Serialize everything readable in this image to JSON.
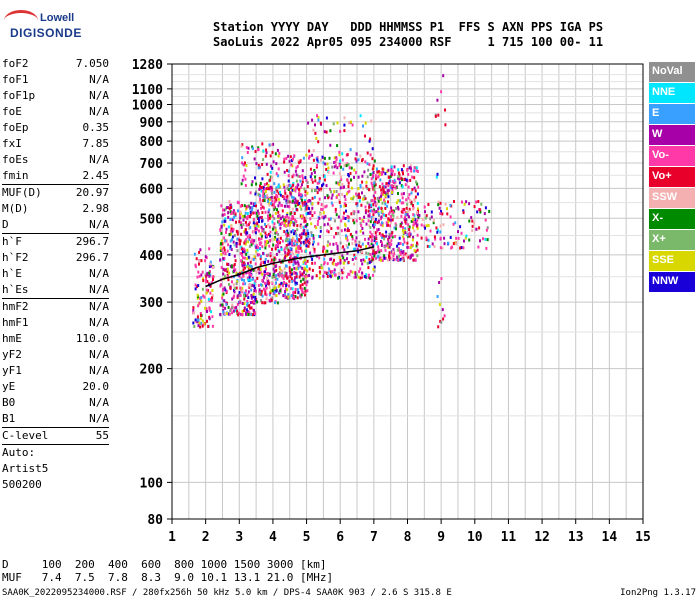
{
  "logo": {
    "line1": "Lowell",
    "line2": "DIGISONDE"
  },
  "header": {
    "labels": "Station YYYY DAY   DDD HHMMSS P1  FFS S AXN PPS IGA PS",
    "values": "SaoLuis 2022 Apr05 095 234000 RSF     1 715 100 00- 11"
  },
  "params": [
    {
      "name": "foF2",
      "value": "7.050"
    },
    {
      "name": "foF1",
      "value": "N/A"
    },
    {
      "name": "foF1p",
      "value": "N/A"
    },
    {
      "name": "foE",
      "value": "N/A"
    },
    {
      "name": "foEp",
      "value": "0.35"
    },
    {
      "name": "fxI",
      "value": "7.85"
    },
    {
      "name": "foEs",
      "value": "N/A"
    },
    {
      "name": "fmin",
      "value": "2.45",
      "sep": true
    },
    {
      "name": "MUF(D)",
      "value": "20.97"
    },
    {
      "name": "M(D)",
      "value": "2.98"
    },
    {
      "name": "D",
      "value": "N/A",
      "sep": true
    },
    {
      "name": "h`F",
      "value": "296.7"
    },
    {
      "name": "h`F2",
      "value": "296.7"
    },
    {
      "name": "h`E",
      "value": "N/A"
    },
    {
      "name": "h`Es",
      "value": "N/A",
      "sep": true
    },
    {
      "name": "hmF2",
      "value": "N/A"
    },
    {
      "name": "hmF1",
      "value": "N/A"
    },
    {
      "name": "hmE",
      "value": "110.0"
    },
    {
      "name": "yF2",
      "value": "N/A"
    },
    {
      "name": "yF1",
      "value": "N/A"
    },
    {
      "name": "yE",
      "value": "20.0"
    },
    {
      "name": "B0",
      "value": "N/A"
    },
    {
      "name": "B1",
      "value": "N/A",
      "sep": true
    },
    {
      "name": "C-level",
      "value": "55",
      "sep": true
    },
    {
      "name": "Auto:",
      "value": ""
    },
    {
      "name": "Artist5",
      "value": ""
    },
    {
      "name": "500200",
      "value": ""
    }
  ],
  "legend": [
    {
      "label": "NoVal",
      "color": "#909090"
    },
    {
      "label": "NNE",
      "color": "#00e6ff"
    },
    {
      "label": "E",
      "color": "#3aa0ff"
    },
    {
      "label": "W",
      "color": "#a800a8"
    },
    {
      "label": "Vo-",
      "color": "#ff3aa8"
    },
    {
      "label": "Vo+",
      "color": "#e8002a"
    },
    {
      "label": "SSW",
      "color": "#f4b0b0"
    },
    {
      "label": "X-",
      "color": "#008a00"
    },
    {
      "label": "X+",
      "color": "#7ab86a"
    },
    {
      "label": "SSE",
      "color": "#d8d800"
    },
    {
      "label": "NNW",
      "color": "#1a00d8"
    }
  ],
  "bottom": {
    "line1": "D     100  200  400  600  800 1000 1500 3000 [km]",
    "line2": "MUF   7.4  7.5  7.8  8.3  9.0 10.1 13.1 21.0 [MHz]"
  },
  "footer": {
    "left": "SAA0K_2022095234000.RSF / 280fx256h 50 kHz 5.0 km / DPS-4 SAA0K 903 / 2.6 S 315.8 E",
    "right": "Ion2Png 1.3.17"
  },
  "chart_data": {
    "type": "scatter",
    "title": "",
    "xlabel": "",
    "ylabel": "",
    "xlim": [
      1,
      15
    ],
    "ylim": [
      80,
      1280
    ],
    "y_scale": "log",
    "x_ticks": [
      1,
      2,
      3,
      4,
      5,
      6,
      7,
      8,
      9,
      10,
      11,
      12,
      13,
      14,
      15
    ],
    "y_ticks": [
      80,
      100,
      200,
      300,
      400,
      500,
      600,
      700,
      800,
      900,
      1000,
      1100,
      1280
    ],
    "grid": true,
    "regions": [
      {
        "x": [
          1.6,
          2.2
        ],
        "y": [
          260,
          420
        ],
        "density": 120
      },
      {
        "x": [
          2.4,
          3.5
        ],
        "y": [
          280,
          560
        ],
        "density": 420
      },
      {
        "x": [
          3.0,
          4.2
        ],
        "y": [
          300,
          800
        ],
        "density": 220
      },
      {
        "x": [
          3.5,
          5.0
        ],
        "y": [
          310,
          620
        ],
        "density": 520
      },
      {
        "x": [
          4.3,
          7.0
        ],
        "y": [
          350,
          750
        ],
        "density": 600
      },
      {
        "x": [
          5.0,
          7.0
        ],
        "y": [
          380,
          950
        ],
        "density": 150
      },
      {
        "x": [
          6.9,
          8.3
        ],
        "y": [
          390,
          700
        ],
        "density": 450
      },
      {
        "x": [
          8.0,
          10.4
        ],
        "y": [
          420,
          560
        ],
        "density": 120
      },
      {
        "x": [
          8.8,
          9.1
        ],
        "y": [
          260,
          1270
        ],
        "density": 25
      }
    ],
    "trace": {
      "x": [
        2.0,
        2.5,
        3.0,
        3.5,
        4.0,
        4.5,
        5.0,
        5.5,
        6.0,
        6.5,
        7.0
      ],
      "y": [
        330,
        345,
        355,
        370,
        380,
        388,
        395,
        400,
        405,
        410,
        420
      ]
    }
  }
}
